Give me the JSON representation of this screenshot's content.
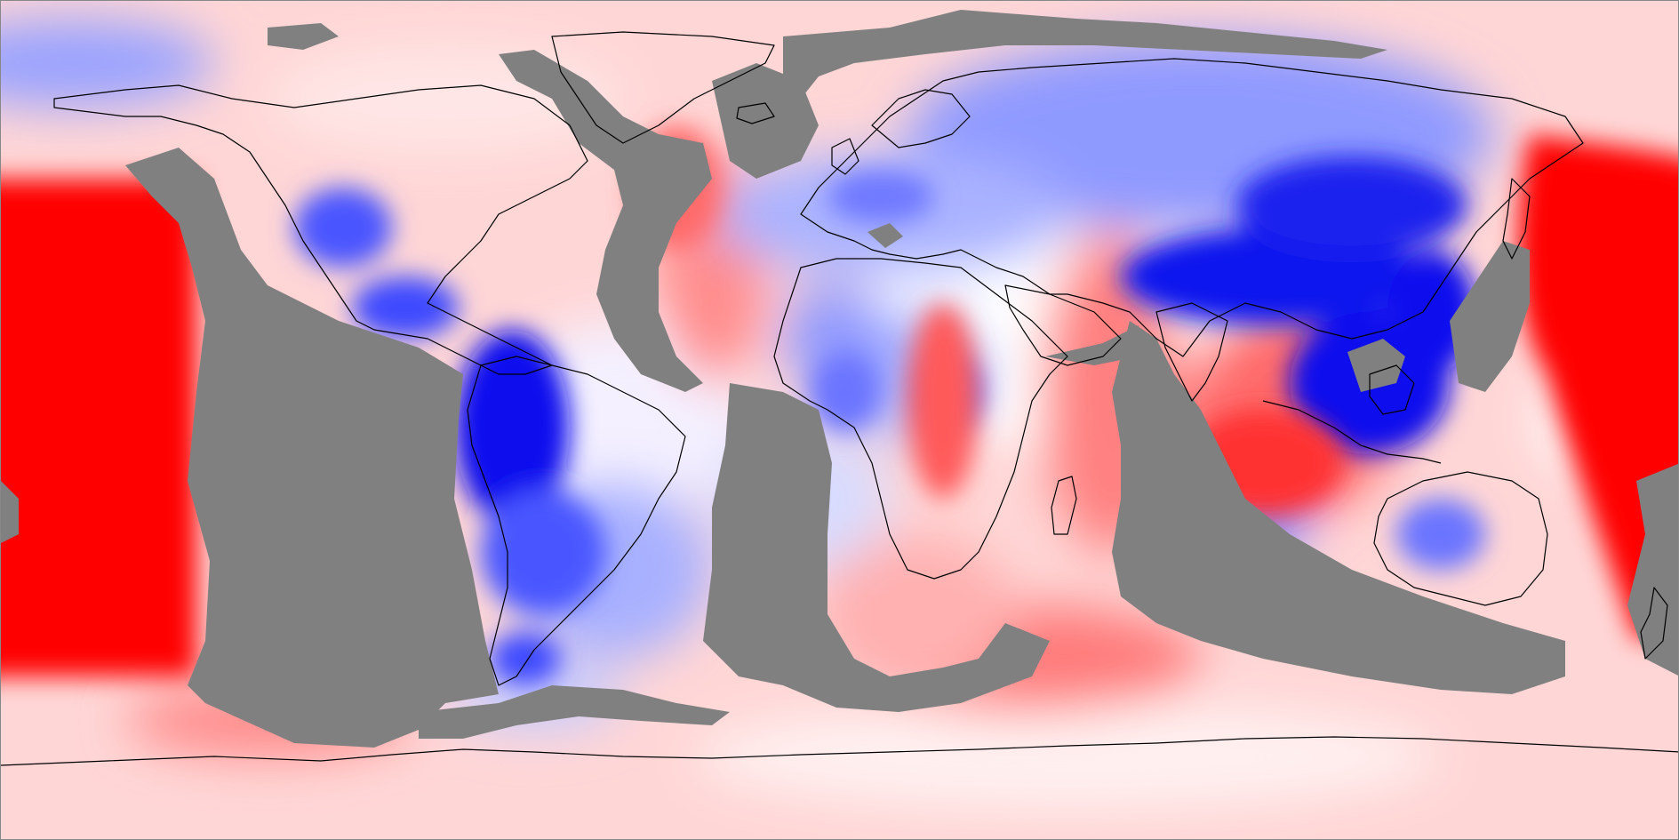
{
  "map": {
    "projection": "equirectangular",
    "lon_range": [
      -180,
      180
    ],
    "lat_range": [
      -90,
      90
    ],
    "colors": {
      "strong_negative": "#0000ee",
      "negative": "#5a66ff",
      "weak_negative": "#c9ceff",
      "neutral": "#ffffff",
      "weak_positive": "#ffd2d2",
      "positive": "#ff7a7a",
      "strong_positive": "#ff0000",
      "mask": "#808080",
      "coastline": "#000000"
    }
  }
}
